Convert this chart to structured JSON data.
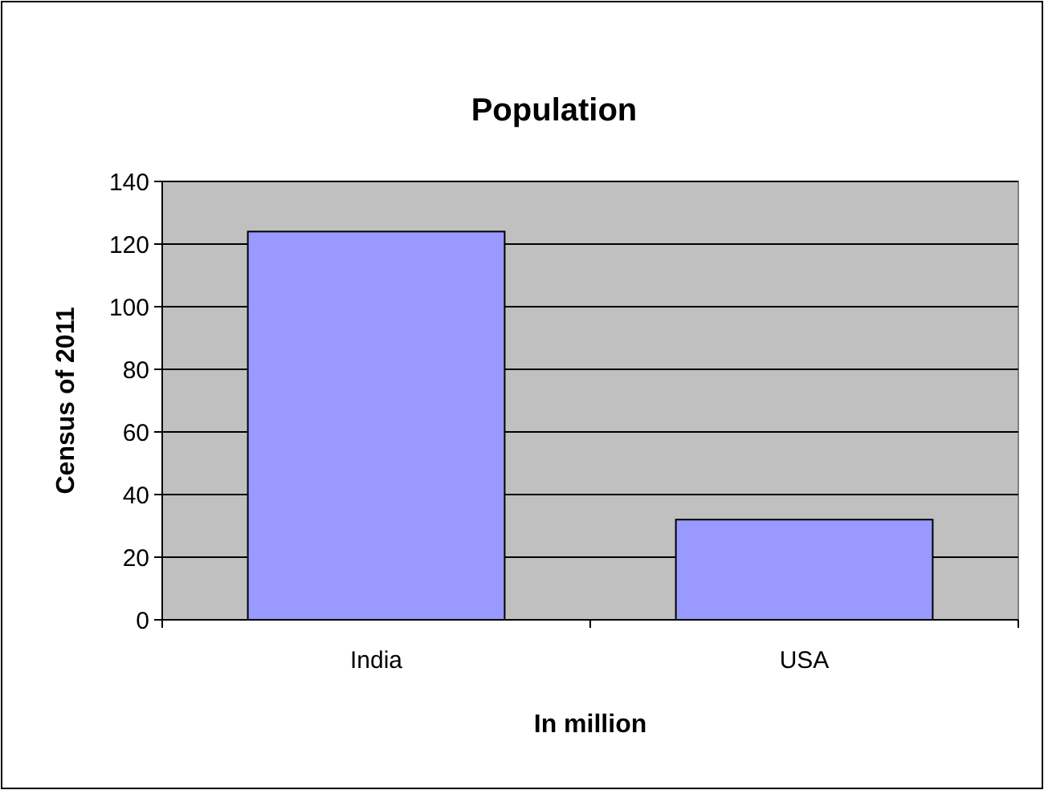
{
  "chart_data": {
    "type": "bar",
    "title": "Population",
    "xlabel": "In million",
    "ylabel": "Census of 2011",
    "categories": [
      "India",
      "USA"
    ],
    "values": [
      124,
      32
    ],
    "color": "#9999ff",
    "ylim": [
      0,
      140
    ],
    "yticks": [
      0,
      20,
      40,
      60,
      80,
      100,
      120,
      140
    ],
    "grid": "y"
  }
}
